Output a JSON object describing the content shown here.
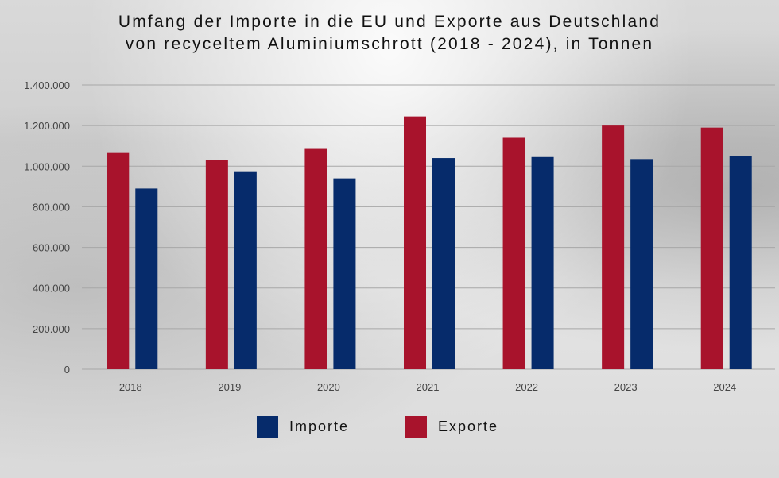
{
  "title_line1": "Umfang der Importe in die EU und Exporte aus Deutschland",
  "title_line2": "von recyceltem Aluminiumschrott (2018 - 2024), in Tonnen",
  "colors": {
    "importe": "#062b6b",
    "exporte": "#a8132c",
    "grid": "#a7a7a7",
    "axis_text": "#444444"
  },
  "chart_data": {
    "type": "bar",
    "title": "Umfang der Importe in die EU und Exporte aus Deutschland von recyceltem Aluminiumschrott (2018 - 2024), in Tonnen",
    "categories": [
      "2018",
      "2019",
      "2020",
      "2021",
      "2022",
      "2023",
      "2024"
    ],
    "series": [
      {
        "name": "Exporte",
        "values": [
          1065000,
          1030000,
          1085000,
          1245000,
          1140000,
          1200000,
          1190000
        ]
      },
      {
        "name": "Importe",
        "values": [
          890000,
          975000,
          940000,
          1040000,
          1045000,
          1035000,
          1050000
        ]
      }
    ],
    "ylim": [
      0,
      1400000
    ],
    "yticks": [
      0,
      200000,
      400000,
      600000,
      800000,
      1000000,
      1200000,
      1400000
    ],
    "ytick_labels": [
      "0",
      "200.000",
      "400.000",
      "600.000",
      "800.000",
      "1.000.000",
      "1.200.000",
      "1.400.000"
    ],
    "grid": true,
    "legend_position": "bottom-center"
  },
  "legend": {
    "items": [
      {
        "label": "Importe",
        "color": "#062b6b"
      },
      {
        "label": "Exporte",
        "color": "#a8132c"
      }
    ]
  }
}
